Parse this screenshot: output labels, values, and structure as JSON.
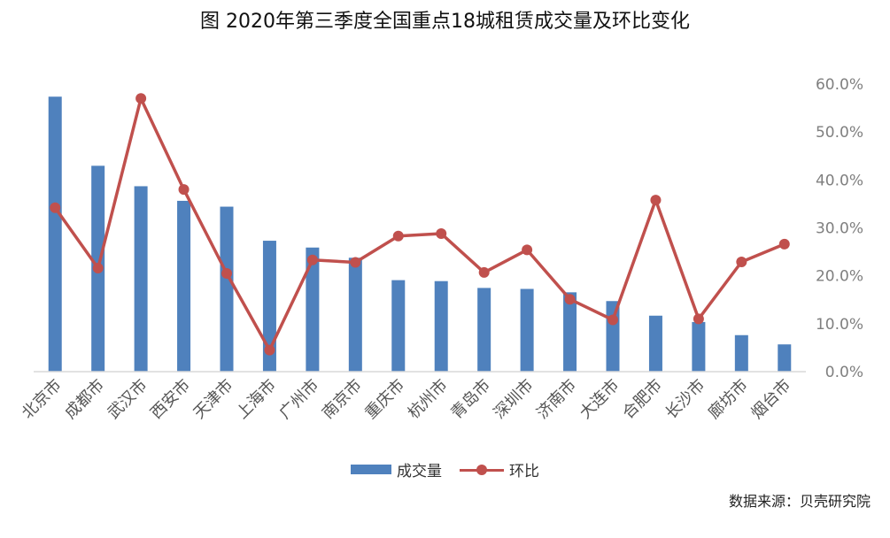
{
  "title": "图 2020年第三季度全国重点18城租赁成交量及环比变化",
  "source_note": "数据来源：贝壳研究院",
  "colors": {
    "bar": "#4f81bd",
    "line": "#c0504d",
    "axis_text": "#7f7f7f",
    "axis_line": "#d9d9d9"
  },
  "chart_data": {
    "type": "bar",
    "title": "图 2020年第三季度全国重点18城租赁成交量及环比变化",
    "categories": [
      "北京市",
      "成都市",
      "武汉市",
      "西安市",
      "天津市",
      "上海市",
      "广州市",
      "南京市",
      "重庆市",
      "杭州市",
      "青岛市",
      "深圳市",
      "济南市",
      "大连市",
      "合肥市",
      "长沙市",
      "廊坊市",
      "烟台市"
    ],
    "series": [
      {
        "name": "成交量",
        "type": "bar",
        "axis": "hidden-primary",
        "values": [
          56.5,
          42.3,
          38.1,
          35.1,
          33.9,
          26.9,
          25.5,
          23.4,
          18.8,
          18.6,
          17.2,
          17.0,
          16.3,
          14.5,
          11.5,
          10.2,
          7.5,
          5.6
        ]
      },
      {
        "name": "环比",
        "type": "line",
        "axis": "right",
        "unit": "%",
        "values": [
          34.2,
          21.6,
          57.0,
          38.0,
          20.5,
          4.5,
          23.3,
          22.8,
          28.3,
          28.8,
          20.7,
          25.4,
          15.1,
          10.8,
          35.8,
          11.0,
          22.9,
          26.6
        ]
      }
    ],
    "right_axis": {
      "ylim": [
        0,
        60
      ],
      "ticks": [
        "0.0%",
        "10.0%",
        "20.0%",
        "30.0%",
        "40.0%",
        "50.0%",
        "60.0%"
      ]
    },
    "grid": false,
    "legend": {
      "position": "bottom",
      "entries": [
        "成交量",
        "环比"
      ]
    }
  }
}
